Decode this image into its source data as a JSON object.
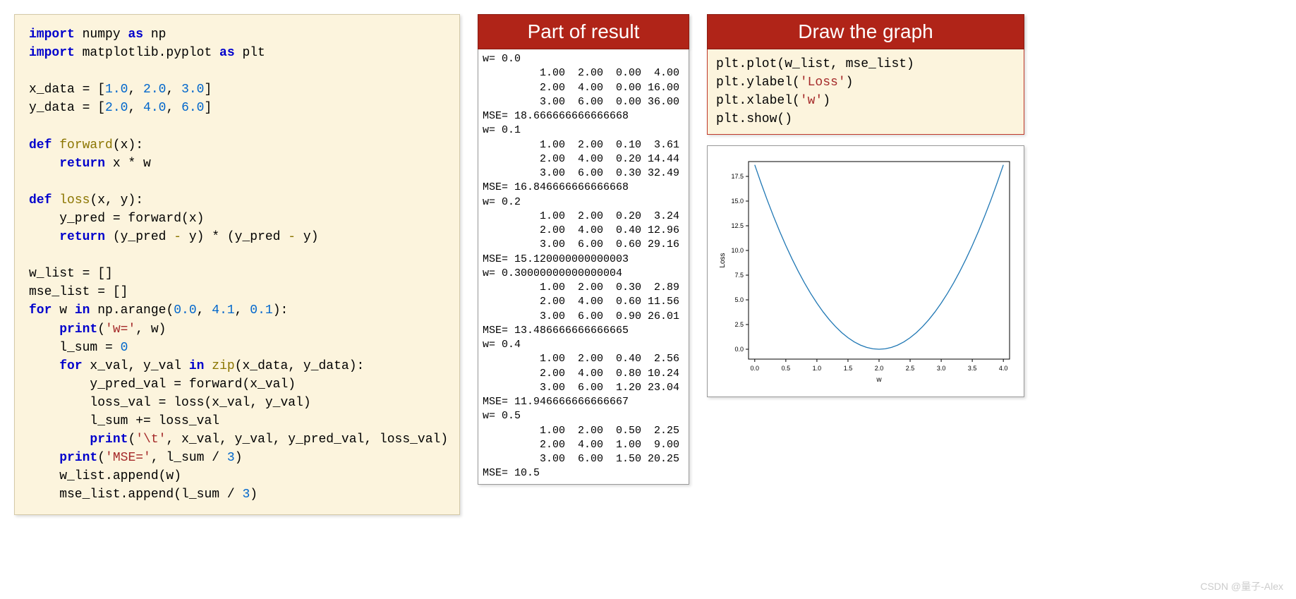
{
  "code_panel": {
    "lines": [
      [
        [
          "kw",
          "import"
        ],
        [
          "",
          " numpy "
        ],
        [
          "kw",
          "as"
        ],
        [
          "",
          " np"
        ]
      ],
      [
        [
          "kw",
          "import"
        ],
        [
          "",
          " matplotlib.pyplot "
        ],
        [
          "kw",
          "as"
        ],
        [
          "",
          " plt"
        ]
      ],
      [
        [
          "",
          ""
        ]
      ],
      [
        [
          "",
          "x_data = ["
        ],
        [
          "num",
          "1.0"
        ],
        [
          "",
          ", "
        ],
        [
          "num",
          "2.0"
        ],
        [
          "",
          ", "
        ],
        [
          "num",
          "3.0"
        ],
        [
          "",
          "]"
        ]
      ],
      [
        [
          "",
          "y_data = ["
        ],
        [
          "num",
          "2.0"
        ],
        [
          "",
          ", "
        ],
        [
          "num",
          "4.0"
        ],
        [
          "",
          ", "
        ],
        [
          "num",
          "6.0"
        ],
        [
          "",
          "]"
        ]
      ],
      [
        [
          "",
          ""
        ]
      ],
      [
        [
          "kw",
          "def"
        ],
        [
          "",
          " "
        ],
        [
          "fn",
          "forward"
        ],
        [
          "",
          "(x):"
        ]
      ],
      [
        [
          "",
          "    "
        ],
        [
          "kw",
          "return"
        ],
        [
          "",
          " x * w"
        ]
      ],
      [
        [
          "",
          ""
        ]
      ],
      [
        [
          "kw",
          "def"
        ],
        [
          "",
          " "
        ],
        [
          "fn",
          "loss"
        ],
        [
          "",
          "(x, y):"
        ]
      ],
      [
        [
          "",
          "    y_pred = forward(x)"
        ]
      ],
      [
        [
          "",
          "    "
        ],
        [
          "kw",
          "return"
        ],
        [
          "",
          " (y_pred "
        ],
        [
          "op",
          "-"
        ],
        [
          "",
          " y) * (y_pred "
        ],
        [
          "op",
          "-"
        ],
        [
          "",
          " y)"
        ]
      ],
      [
        [
          "",
          ""
        ]
      ],
      [
        [
          "",
          "w_list = []"
        ]
      ],
      [
        [
          "",
          "mse_list = []"
        ]
      ],
      [
        [
          "kw",
          "for"
        ],
        [
          "",
          " w "
        ],
        [
          "kw",
          "in"
        ],
        [
          "",
          " np.arange("
        ],
        [
          "num",
          "0.0"
        ],
        [
          "",
          ", "
        ],
        [
          "num",
          "4.1"
        ],
        [
          "",
          ", "
        ],
        [
          "num",
          "0.1"
        ],
        [
          "",
          "):"
        ]
      ],
      [
        [
          "",
          "    "
        ],
        [
          "kw",
          "print"
        ],
        [
          "",
          "("
        ],
        [
          "str",
          "'w='"
        ],
        [
          "",
          ", w)"
        ]
      ],
      [
        [
          "",
          "    l_sum = "
        ],
        [
          "num",
          "0"
        ]
      ],
      [
        [
          "",
          "    "
        ],
        [
          "kw",
          "for"
        ],
        [
          "",
          " x_val, y_val "
        ],
        [
          "kw",
          "in"
        ],
        [
          "",
          " "
        ],
        [
          "fn",
          "zip"
        ],
        [
          "",
          "(x_data, y_data):"
        ]
      ],
      [
        [
          "",
          "        y_pred_val = forward(x_val)"
        ]
      ],
      [
        [
          "",
          "        loss_val = loss(x_val, y_val)"
        ]
      ],
      [
        [
          "",
          "        l_sum += loss_val"
        ]
      ],
      [
        [
          "",
          "        "
        ],
        [
          "kw",
          "print"
        ],
        [
          "",
          "("
        ],
        [
          "str",
          "'\\t'"
        ],
        [
          "",
          ", x_val, y_val, y_pred_val, loss_val)"
        ]
      ],
      [
        [
          "",
          "    "
        ],
        [
          "kw",
          "print"
        ],
        [
          "",
          "("
        ],
        [
          "str",
          "'MSE='"
        ],
        [
          "",
          ", l_sum / "
        ],
        [
          "num",
          "3"
        ],
        [
          "",
          ")"
        ]
      ],
      [
        [
          "",
          "    w_list.append(w)"
        ]
      ],
      [
        [
          "",
          "    mse_list.append(l_sum / "
        ],
        [
          "num",
          "3"
        ],
        [
          "",
          ")"
        ]
      ]
    ]
  },
  "result_panel": {
    "title": "Part of result",
    "text": "w= 0.0\n         1.00  2.00  0.00  4.00\n         2.00  4.00  0.00 16.00\n         3.00  6.00  0.00 36.00\nMSE= 18.666666666666668\nw= 0.1\n         1.00  2.00  0.10  3.61\n         2.00  4.00  0.20 14.44\n         3.00  6.00  0.30 32.49\nMSE= 16.846666666666668\nw= 0.2\n         1.00  2.00  0.20  3.24\n         2.00  4.00  0.40 12.96\n         3.00  6.00  0.60 29.16\nMSE= 15.120000000000003\nw= 0.30000000000000004\n         1.00  2.00  0.30  2.89\n         2.00  4.00  0.60 11.56\n         3.00  6.00  0.90 26.01\nMSE= 13.486666666666665\nw= 0.4\n         1.00  2.00  0.40  2.56\n         2.00  4.00  0.80 10.24\n         3.00  6.00  1.20 23.04\nMSE= 11.946666666666667\nw= 0.5\n         1.00  2.00  0.50  2.25\n         2.00  4.00  1.00  9.00\n         3.00  6.00  1.50 20.25\nMSE= 10.5"
  },
  "draw_panel": {
    "title": "Draw the graph",
    "lines": [
      [
        [
          "",
          "plt.plot(w_list, mse_list)"
        ]
      ],
      [
        [
          "",
          "plt.ylabel("
        ],
        [
          "str",
          "'Loss'"
        ],
        [
          "",
          ")"
        ]
      ],
      [
        [
          "",
          "plt.xlabel("
        ],
        [
          "str",
          "'w'"
        ],
        [
          "",
          ")"
        ]
      ],
      [
        [
          "",
          "plt.show()"
        ]
      ]
    ]
  },
  "chart": {
    "type": "line",
    "xlabel": "w",
    "ylabel": "Loss",
    "xlim": [
      -0.1,
      4.1
    ],
    "ylim": [
      -1.0,
      19.0
    ],
    "xticks": [
      0.0,
      0.5,
      1.0,
      1.5,
      2.0,
      2.5,
      3.0,
      3.5,
      4.0
    ],
    "yticks": [
      0.0,
      2.5,
      5.0,
      7.5,
      10.0,
      12.5,
      15.0,
      17.5
    ],
    "tick_fontsize": 9,
    "label_fontsize": 10,
    "line_color": "#1f77b4",
    "line_width": 1.3,
    "background_color": "#ffffff",
    "border_color": "#000000",
    "x": [
      0.0,
      0.1,
      0.2,
      0.3,
      0.4,
      0.5,
      0.6,
      0.7,
      0.8,
      0.9,
      1.0,
      1.1,
      1.2,
      1.3,
      1.4,
      1.5,
      1.6,
      1.7,
      1.8,
      1.9,
      2.0,
      2.1,
      2.2,
      2.3,
      2.4,
      2.5,
      2.6,
      2.7,
      2.8,
      2.9,
      3.0,
      3.1,
      3.2,
      3.3,
      3.4,
      3.5,
      3.6,
      3.7,
      3.8,
      3.9,
      4.0
    ],
    "y": [
      18.667,
      16.847,
      15.12,
      13.487,
      11.947,
      10.5,
      9.147,
      7.887,
      6.72,
      5.647,
      4.667,
      3.78,
      2.987,
      2.287,
      1.68,
      1.167,
      0.747,
      0.42,
      0.187,
      0.047,
      0.0,
      0.047,
      0.187,
      0.42,
      0.747,
      1.167,
      1.68,
      2.287,
      2.987,
      3.78,
      4.667,
      5.647,
      6.72,
      7.887,
      9.147,
      10.5,
      11.947,
      13.487,
      15.12,
      16.847,
      18.667
    ]
  },
  "watermark": "CSDN @量子-Alex"
}
